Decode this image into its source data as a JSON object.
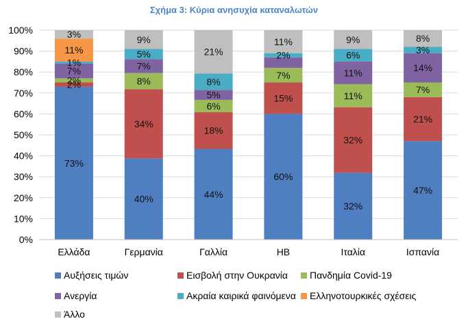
{
  "chart_data": {
    "type": "bar",
    "stacked": true,
    "title": "Σχήμα 3: Κύρια ανησυχία καταναλωτών",
    "xlabel": "",
    "ylabel": "",
    "ylim": [
      0,
      100
    ],
    "yticks": [
      "0%",
      "10%",
      "20%",
      "30%",
      "40%",
      "50%",
      "60%",
      "70%",
      "80%",
      "90%",
      "100%"
    ],
    "grid": true,
    "legend_position": "bottom",
    "categories": [
      "Ελλάδα",
      "Γερμανία",
      "Γαλλία",
      "ΗΒ",
      "Ιταλία",
      "Ισπανία"
    ],
    "series": [
      {
        "name": "Αυξήσεις τιμών",
        "color": "#4f7ec1",
        "values": [
          73,
          40,
          44,
          60,
          32,
          47
        ],
        "labels": [
          "73%",
          "40%",
          "44%",
          "60%",
          "32%",
          "47%"
        ],
        "stack": [
          73,
          38.8,
          43.3,
          60,
          31.9,
          47
        ]
      },
      {
        "name": "Εισβολή στην Ουκρανία",
        "color": "#c0504d",
        "values": [
          2,
          34,
          18,
          15,
          32,
          21
        ],
        "labels": [
          "2%",
          "34%",
          "18%",
          "15%",
          "32%",
          "21%"
        ],
        "stack": [
          2,
          33,
          17.5,
          15,
          31.3,
          21
        ]
      },
      {
        "name": "Πανδημία Covid-19",
        "color": "#9bbb59",
        "values": [
          2,
          8,
          6,
          7,
          11,
          7
        ],
        "labels": [
          "2%",
          "8%",
          "6%",
          "7%",
          "11%",
          "7%"
        ],
        "stack": [
          2,
          7.7,
          5.9,
          7,
          11,
          7
        ]
      },
      {
        "name": "Ανεργία",
        "color": "#8064a2",
        "values": [
          7,
          7,
          5,
          5,
          11,
          14
        ],
        "labels": [
          "7%",
          "7%",
          "5%",
          "",
          "11%",
          "14%"
        ],
        "stack": [
          7,
          6.7,
          4.8,
          5,
          10.8,
          14
        ]
      },
      {
        "name": "Ακραία καιρικά φαινόμενα",
        "color": "#4bacc6",
        "values": [
          1,
          5,
          8,
          2,
          6,
          3
        ],
        "labels": [
          "1%",
          "5%",
          "8%",
          "2%",
          "6%",
          "3%"
        ],
        "stack": [
          1,
          4.8,
          7.8,
          2,
          6,
          3
        ]
      },
      {
        "name": "Ελληνοτουρκικές σχέσεις",
        "color": "#f79646",
        "values": [
          11,
          0,
          0,
          0,
          0,
          0
        ],
        "labels": [
          "11%",
          "",
          "",
          "",
          "",
          ""
        ],
        "stack": [
          11,
          0,
          0,
          0,
          0,
          0
        ]
      },
      {
        "name": "Άλλο",
        "color": "#bfbfbf",
        "values": [
          3,
          9,
          21,
          11,
          9,
          8
        ],
        "labels": [
          "3%",
          "9%",
          "21%",
          "11%",
          "9%",
          "8%"
        ],
        "stack": [
          4,
          9,
          20.7,
          11,
          9,
          8
        ]
      }
    ]
  }
}
